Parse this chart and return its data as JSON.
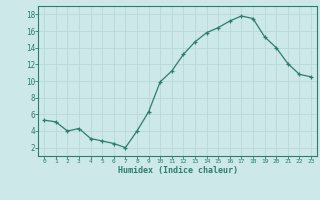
{
  "x": [
    0,
    1,
    2,
    3,
    4,
    5,
    6,
    7,
    8,
    9,
    10,
    11,
    12,
    13,
    14,
    15,
    16,
    17,
    18,
    19,
    20,
    21,
    22,
    23
  ],
  "y": [
    5.3,
    5.1,
    4.0,
    4.3,
    3.1,
    2.8,
    2.5,
    2.0,
    4.0,
    6.3,
    9.9,
    11.2,
    13.2,
    14.7,
    15.8,
    16.4,
    17.2,
    17.8,
    17.5,
    15.3,
    14.0,
    12.1,
    10.8,
    10.5
  ],
  "xlabel": "Humidex (Indice chaleur)",
  "ylim": [
    1,
    19
  ],
  "xlim": [
    -0.5,
    23.5
  ],
  "yticks": [
    2,
    4,
    6,
    8,
    10,
    12,
    14,
    16,
    18
  ],
  "xticks": [
    0,
    1,
    2,
    3,
    4,
    5,
    6,
    7,
    8,
    9,
    10,
    11,
    12,
    13,
    14,
    15,
    16,
    17,
    18,
    19,
    20,
    21,
    22,
    23
  ],
  "line_color": "#2d7d6e",
  "marker": "+",
  "bg_color": "#cce8e8",
  "grid_color": "#b8d8d8",
  "axis_color": "#2d7d6e",
  "font_color": "#2d7d6e",
  "figsize": [
    3.2,
    2.0
  ],
  "dpi": 100
}
